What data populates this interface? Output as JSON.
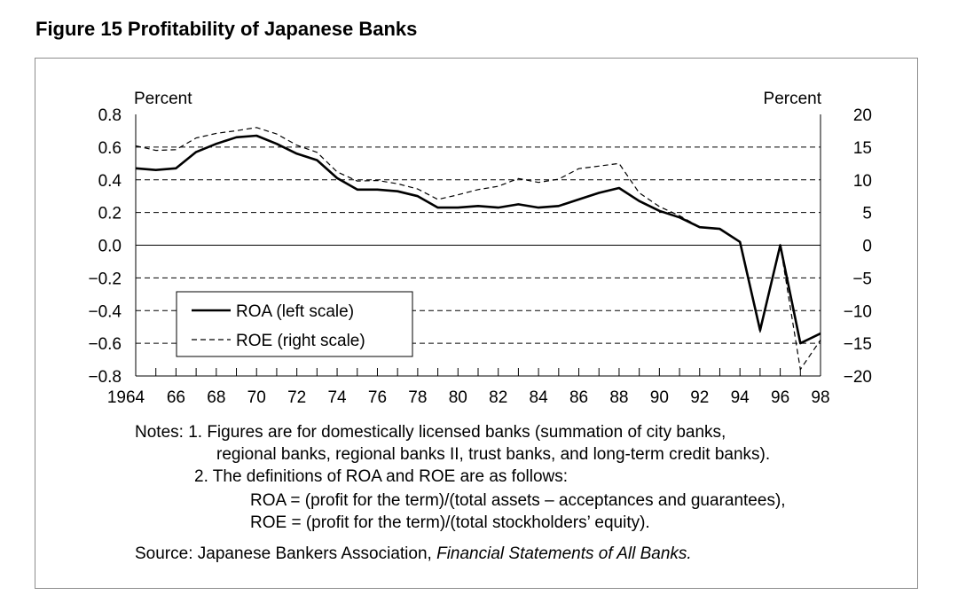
{
  "figure": {
    "title": "Figure 15  Profitability of Japanese Banks"
  },
  "chart_data": {
    "type": "line",
    "title": "Profitability of Japanese Banks",
    "x": [
      1964,
      1965,
      1966,
      1967,
      1968,
      1969,
      1970,
      1971,
      1972,
      1973,
      1974,
      1975,
      1976,
      1977,
      1978,
      1979,
      1980,
      1981,
      1982,
      1983,
      1984,
      1985,
      1986,
      1987,
      1988,
      1989,
      1990,
      1991,
      1992,
      1993,
      1994,
      1995,
      1996,
      1997,
      1998
    ],
    "series": [
      {
        "name": "ROA (left scale)",
        "axis": "left",
        "style": "solid",
        "values": [
          0.47,
          0.46,
          0.47,
          0.57,
          0.62,
          0.66,
          0.67,
          0.62,
          0.56,
          0.52,
          0.41,
          0.34,
          0.34,
          0.33,
          0.3,
          0.23,
          0.23,
          0.24,
          0.23,
          0.25,
          0.23,
          0.24,
          0.28,
          0.32,
          0.35,
          0.27,
          0.21,
          0.17,
          0.11,
          0.1,
          0.02,
          -0.52,
          0.0,
          -0.6,
          -0.54
        ]
      },
      {
        "name": "ROE (right scale)",
        "axis": "right",
        "style": "dashed",
        "values": [
          15.2,
          14.5,
          14.6,
          16.4,
          17.1,
          17.5,
          18.0,
          17.0,
          15.3,
          14.2,
          11.2,
          9.8,
          9.9,
          9.4,
          8.6,
          7.0,
          7.7,
          8.5,
          9.0,
          10.2,
          9.6,
          10.1,
          11.7,
          12.1,
          12.5,
          8.0,
          5.9,
          4.5,
          2.8,
          2.4,
          0.5,
          -13.3,
          0.0,
          -19.0,
          -14.5
        ]
      }
    ],
    "y_left": {
      "label": "Percent",
      "min": -0.8,
      "max": 0.8,
      "ticks": [
        "0.8",
        "0.6",
        "0.4",
        "0.2",
        "0.0",
        "−0.2",
        "−0.4",
        "−0.6",
        "−0.8"
      ]
    },
    "y_right": {
      "label": "Percent",
      "min": -20,
      "max": 20,
      "ticks": [
        "20",
        "15",
        "10",
        "5",
        "0",
        "−5",
        "−10",
        "−15",
        "−20"
      ]
    },
    "x_tick_labels": [
      "1964",
      "66",
      "68",
      "70",
      "72",
      "74",
      "76",
      "78",
      "80",
      "82",
      "84",
      "86",
      "88",
      "90",
      "92",
      "94",
      "96",
      "98"
    ],
    "grid": "dashed horizontal",
    "legend": "bottom-left"
  },
  "notes": {
    "line1": "Notes: 1. Figures are for domestically licensed banks (summation of city banks,",
    "line2": "regional banks, regional banks II, trust banks, and long-term credit banks).",
    "line3": "2. The definitions of ROA and ROE are as follows:",
    "line4": "ROA = (profit for the term)/(total assets – acceptances and guarantees),",
    "line5": "ROE = (profit for the term)/(total stockholders’ equity).",
    "source_prefix": "Source: Japanese Bankers Association, ",
    "source_title": "Financial Statements of All Banks."
  }
}
